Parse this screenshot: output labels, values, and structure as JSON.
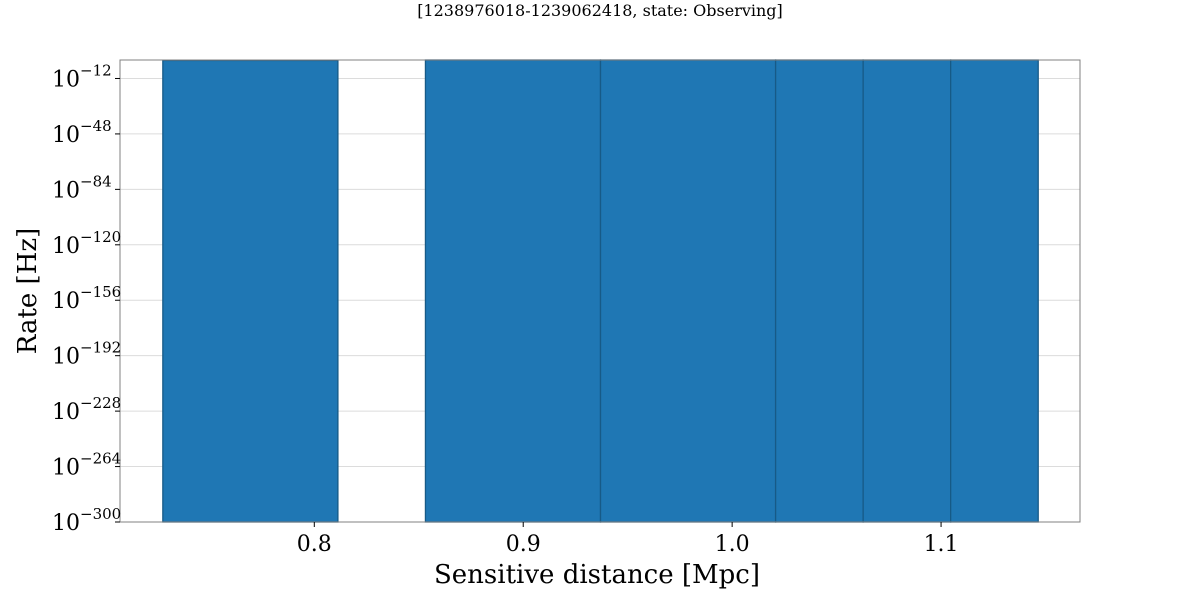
{
  "chart_data": {
    "type": "bar",
    "title": "[1238976018-1239062418, state: Observing]",
    "xlabel": "Sensitive distance [Mpc]",
    "ylabel": "Rate [Hz]",
    "y_scale": "log",
    "xlim": [
      0.707,
      1.1665
    ],
    "ylim_exponent": [
      -300,
      0
    ],
    "x_ticks": [
      {
        "value": 0.8,
        "label": "0.8"
      },
      {
        "value": 0.9,
        "label": "0.9"
      },
      {
        "value": 1.0,
        "label": "1.0"
      },
      {
        "value": 1.1,
        "label": "1.1"
      }
    ],
    "y_ticks": [
      {
        "exponent": -12,
        "base": "10",
        "exp_label": "−12"
      },
      {
        "exponent": -48,
        "base": "10",
        "exp_label": "−48"
      },
      {
        "exponent": -84,
        "base": "10",
        "exp_label": "−84"
      },
      {
        "exponent": -120,
        "base": "10",
        "exp_label": "−120"
      },
      {
        "exponent": -156,
        "base": "10",
        "exp_label": "−156"
      },
      {
        "exponent": -192,
        "base": "10",
        "exp_label": "−192"
      },
      {
        "exponent": -228,
        "base": "10",
        "exp_label": "−228"
      },
      {
        "exponent": -264,
        "base": "10",
        "exp_label": "−264"
      },
      {
        "exponent": -300,
        "base": "10",
        "exp_label": "−300"
      }
    ],
    "bins": [
      {
        "x0": 0.7275,
        "x1": 0.8113,
        "log10_rate": -0.3
      },
      {
        "x0": 0.8113,
        "x1": 0.8532,
        "log10_rate": -300
      },
      {
        "x0": 0.8532,
        "x1": 0.937,
        "log10_rate": 0.6
      },
      {
        "x0": 0.937,
        "x1": 1.0208,
        "log10_rate": 1.2
      },
      {
        "x0": 1.0208,
        "x1": 1.0627,
        "log10_rate": 1.8
      },
      {
        "x0": 1.0627,
        "x1": 1.1046,
        "log10_rate": 2.7
      },
      {
        "x0": 1.1046,
        "x1": 1.1465,
        "log10_rate": 1.8
      }
    ],
    "grid": true,
    "legend": "none",
    "colors": {
      "bar": "#1f77b4",
      "edge": "#175a87"
    }
  }
}
